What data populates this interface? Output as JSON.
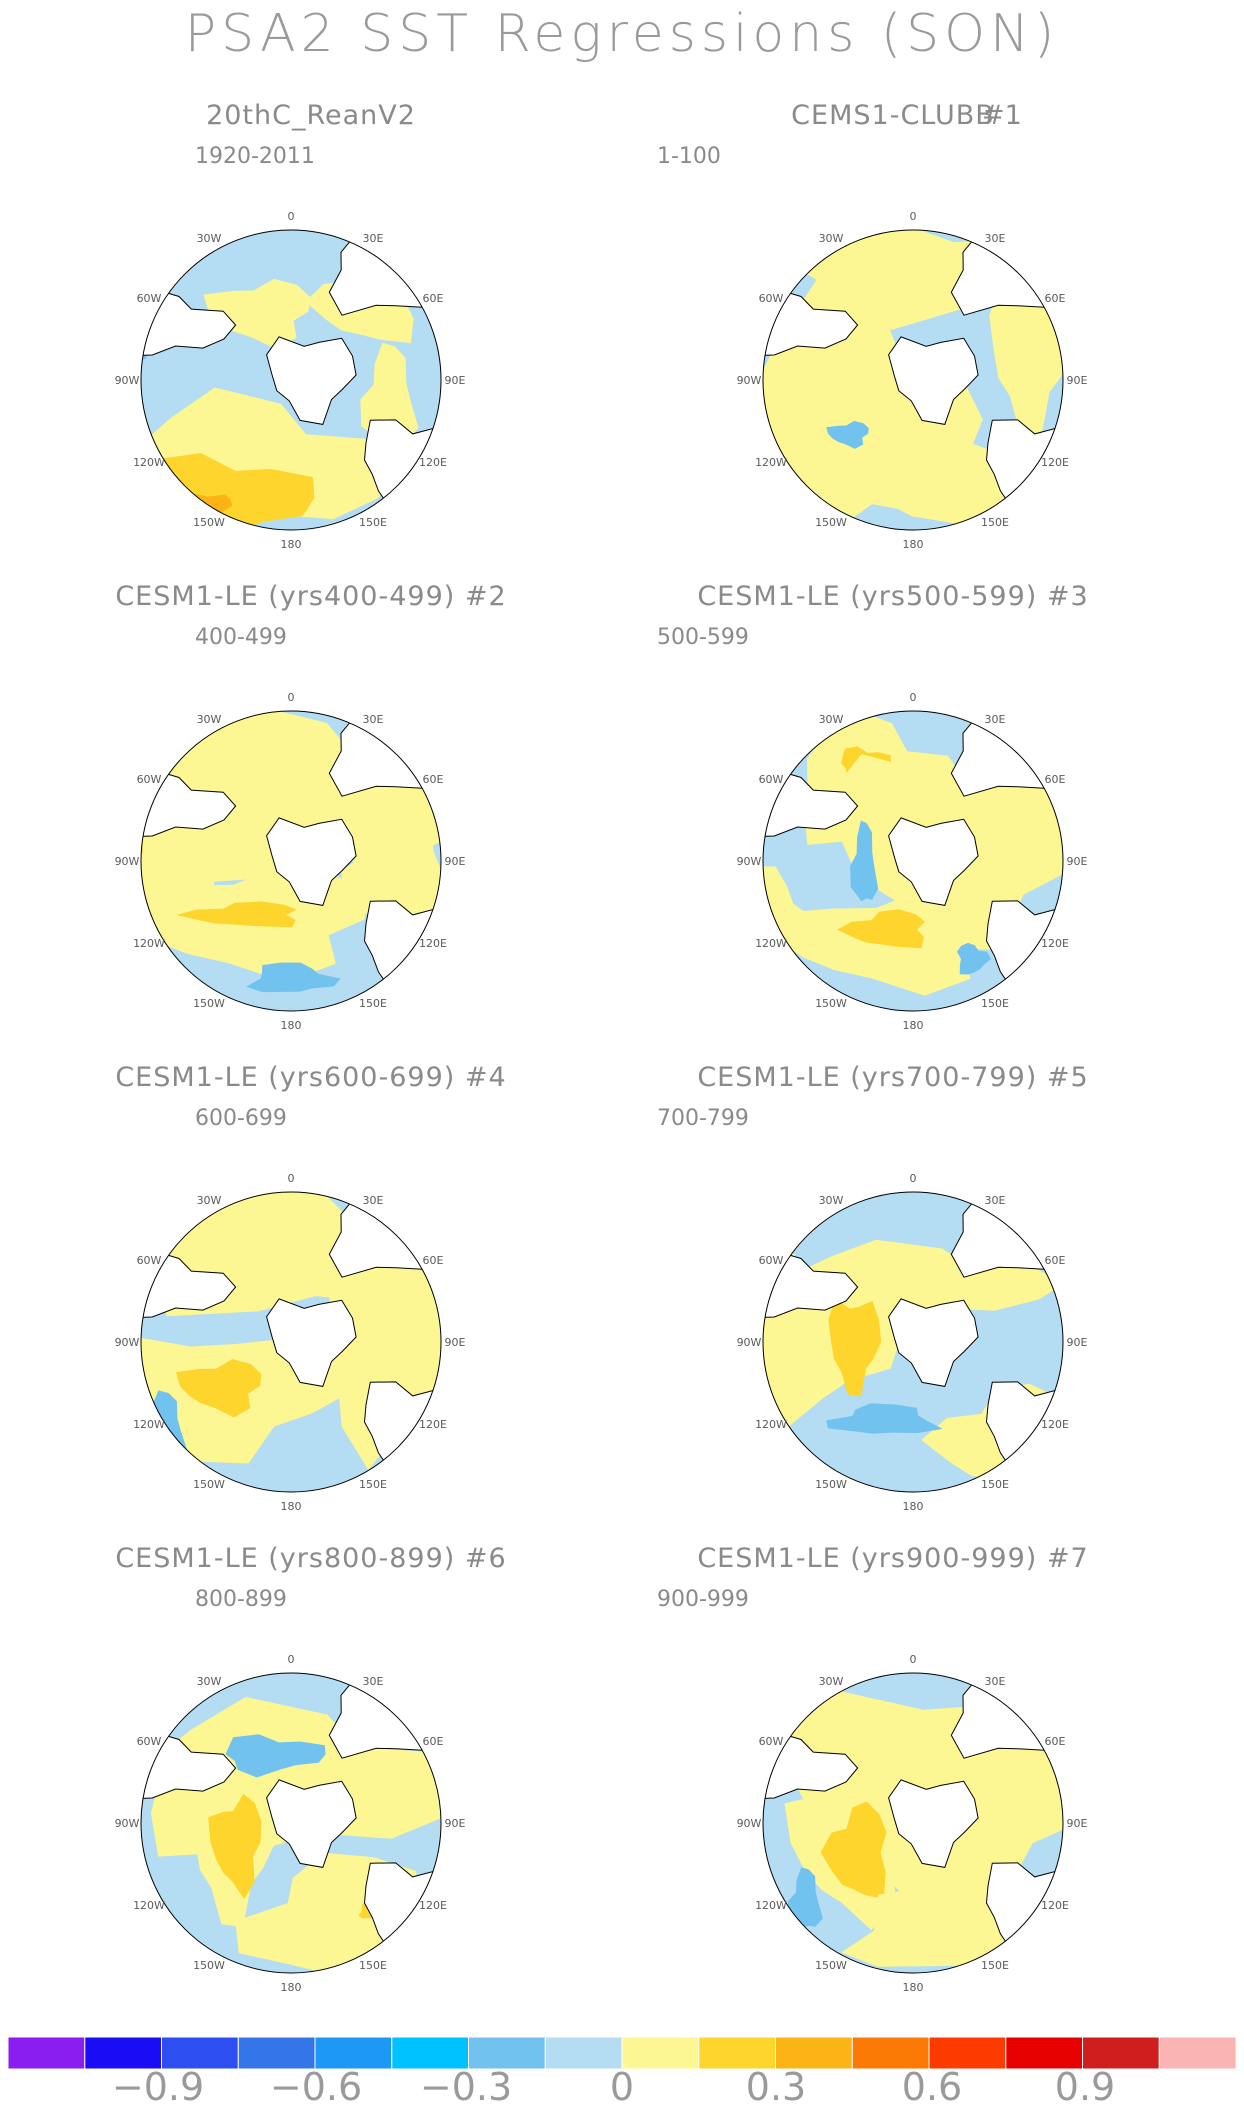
{
  "title": "PSA2 SST Regressions (SON)",
  "lon_labels": {
    "p0": "0",
    "p30e": "30E",
    "p60e": "60E",
    "p90e": "90E",
    "p120e": "120E",
    "p150e": "150E",
    "p180": "180",
    "p150w": "150W",
    "p120w": "120W",
    "p90w": "90W",
    "p60w": "60W",
    "p30w": "30W"
  },
  "colors": {
    "neg_light": "#b4dcf2",
    "neg_mid": "#72c2f0",
    "neg_strong": "#3e9cef",
    "pos_light": "#fdf793",
    "pos_mid": "#fdd52d",
    "pos_strong": "#fbb316",
    "land": "#ffffff",
    "coast": "#000000"
  },
  "panels": [
    {
      "id": "reanalysis",
      "title": "20thC_ReanV2",
      "period": "1920-2011",
      "tag": ""
    },
    {
      "id": "clubb",
      "title": "CEMS1-CLUBB",
      "period": "1-100",
      "tag": "#1"
    },
    {
      "id": "le2",
      "title": "CESM1-LE (yrs400-499) #2",
      "period": "400-499",
      "tag": ""
    },
    {
      "id": "le3",
      "title": "CESM1-LE (yrs500-599) #3",
      "period": "500-599",
      "tag": ""
    },
    {
      "id": "le4",
      "title": "CESM1-LE (yrs600-699) #4",
      "period": "600-699",
      "tag": ""
    },
    {
      "id": "le5",
      "title": "CESM1-LE (yrs700-799) #5",
      "period": "700-799",
      "tag": ""
    },
    {
      "id": "le6",
      "title": "CESM1-LE (yrs800-899) #6",
      "period": "800-899",
      "tag": ""
    },
    {
      "id": "le7",
      "title": "CESM1-LE (yrs900-999) #7",
      "period": "900-999",
      "tag": ""
    }
  ],
  "colorbar": {
    "colors": [
      "#8a1ef0",
      "#1a0cf5",
      "#2d4ef0",
      "#3575ea",
      "#1e98f5",
      "#00c2ff",
      "#72c2f0",
      "#b4dcf2",
      "#fdf793",
      "#fdd52d",
      "#fbb316",
      "#fb7a06",
      "#fd3a00",
      "#e70000",
      "#d01e1e",
      "#fbb4b4"
    ],
    "labels": [
      "−0.9",
      "−0.6",
      "−0.3",
      "0",
      "0.3",
      "0.6",
      "0.9"
    ]
  }
}
